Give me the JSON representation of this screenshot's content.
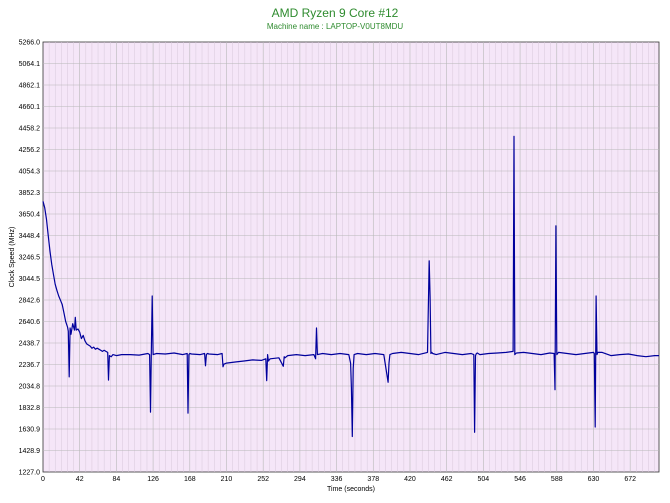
{
  "chart_data": {
    "type": "line",
    "title": "AMD Ryzen 9 Core #12",
    "subtitle": "Machine name : LAPTOP-V0UT8MDU",
    "xlabel": "Time (seconds)",
    "ylabel": "Clock Speed (MHz)",
    "xlim": [
      0,
      705
    ],
    "ylim": [
      1227.0,
      5266.0
    ],
    "x_ticks": [
      "0",
      "42",
      "84",
      "126",
      "168",
      "210",
      "252",
      "294",
      "336",
      "378",
      "420",
      "462",
      "504",
      "546",
      "588",
      "630",
      "672"
    ],
    "y_ticks": [
      "1227.0",
      "1428.9",
      "1630.9",
      "1832.8",
      "2034.8",
      "2236.7",
      "2438.7",
      "2640.6",
      "2842.6",
      "3044.5",
      "3246.5",
      "3448.4",
      "3650.4",
      "3852.3",
      "4054.3",
      "4256.2",
      "4458.2",
      "4660.1",
      "4862.1",
      "5064.1",
      "5266.0"
    ],
    "grid": true,
    "colors": {
      "line": "#00009c",
      "plot_bg": "#f5e6f8",
      "grid": "#b8b8b8",
      "title": "#2e8b2e"
    },
    "series": [
      {
        "x": [
          0,
          2,
          4,
          6,
          8,
          10,
          12,
          14,
          16,
          18,
          20,
          22,
          24,
          26,
          28,
          29,
          30,
          31,
          32,
          34,
          36,
          37,
          38,
          40,
          42,
          44,
          46,
          48,
          50,
          52,
          54,
          56,
          58,
          60,
          62,
          64,
          66,
          68,
          70,
          72,
          74,
          75,
          76,
          78,
          80,
          84,
          90,
          100,
          110,
          120,
          122,
          123,
          124,
          125,
          126,
          130,
          140,
          150,
          160,
          165,
          166,
          167,
          168,
          170,
          180,
          185,
          186,
          187,
          188,
          190,
          200,
          205,
          206,
          207,
          210,
          220,
          230,
          240,
          250,
          255,
          256,
          257,
          258,
          260,
          270,
          275,
          276,
          277,
          280,
          290,
          300,
          310,
          312,
          313,
          314,
          320,
          330,
          340,
          350,
          352,
          353,
          354,
          355,
          356,
          360,
          370,
          380,
          390,
          395,
          396,
          397,
          400,
          410,
          420,
          430,
          440,
          442,
          443,
          444,
          445,
          446,
          450,
          460,
          470,
          480,
          490,
          493,
          494,
          495,
          496,
          497,
          500,
          510,
          520,
          530,
          538,
          539,
          540,
          541,
          542,
          550,
          560,
          570,
          580,
          585,
          586,
          587,
          588,
          589,
          590,
          600,
          610,
          620,
          630,
          631,
          632,
          633,
          634,
          635,
          640,
          650,
          660,
          670,
          680,
          690,
          700,
          705
        ],
        "y": [
          3770,
          3710,
          3600,
          3450,
          3300,
          3180,
          3080,
          2990,
          2930,
          2880,
          2840,
          2800,
          2720,
          2640,
          2590,
          2550,
          2120,
          2580,
          2520,
          2620,
          2560,
          2680,
          2560,
          2570,
          2540,
          2480,
          2510,
          2460,
          2430,
          2420,
          2410,
          2390,
          2400,
          2380,
          2390,
          2380,
          2370,
          2360,
          2370,
          2360,
          2350,
          2090,
          2320,
          2310,
          2330,
          2320,
          2330,
          2330,
          2325,
          2340,
          2330,
          1790,
          2340,
          2880,
          2330,
          2340,
          2335,
          2345,
          2330,
          2340,
          1780,
          2330,
          2340,
          2335,
          2330,
          2340,
          2225,
          2330,
          2340,
          2335,
          2330,
          2340,
          2215,
          2240,
          2250,
          2260,
          2270,
          2280,
          2275,
          2290,
          2085,
          2330,
          2270,
          2290,
          2300,
          2220,
          2310,
          2300,
          2320,
          2330,
          2320,
          2330,
          2290,
          2580,
          2330,
          2340,
          2330,
          2340,
          2330,
          2250,
          2020,
          1560,
          2200,
          2330,
          2340,
          2330,
          2340,
          2330,
          2070,
          2250,
          2330,
          2340,
          2350,
          2340,
          2330,
          2350,
          3210,
          2870,
          2340,
          2350,
          2340,
          2330,
          2350,
          2340,
          2330,
          2340,
          2330,
          1600,
          2320,
          2340,
          2345,
          2330,
          2340,
          2345,
          2350,
          2360,
          4380,
          2330,
          2340,
          2345,
          2350,
          2340,
          2330,
          2345,
          2340,
          2000,
          3540,
          2330,
          2340,
          2350,
          2340,
          2330,
          2340,
          2350,
          2340,
          1650,
          2880,
          2330,
          2350,
          2350,
          2320,
          2330,
          2335,
          2320,
          2310,
          2320,
          2320
        ]
      }
    ]
  }
}
